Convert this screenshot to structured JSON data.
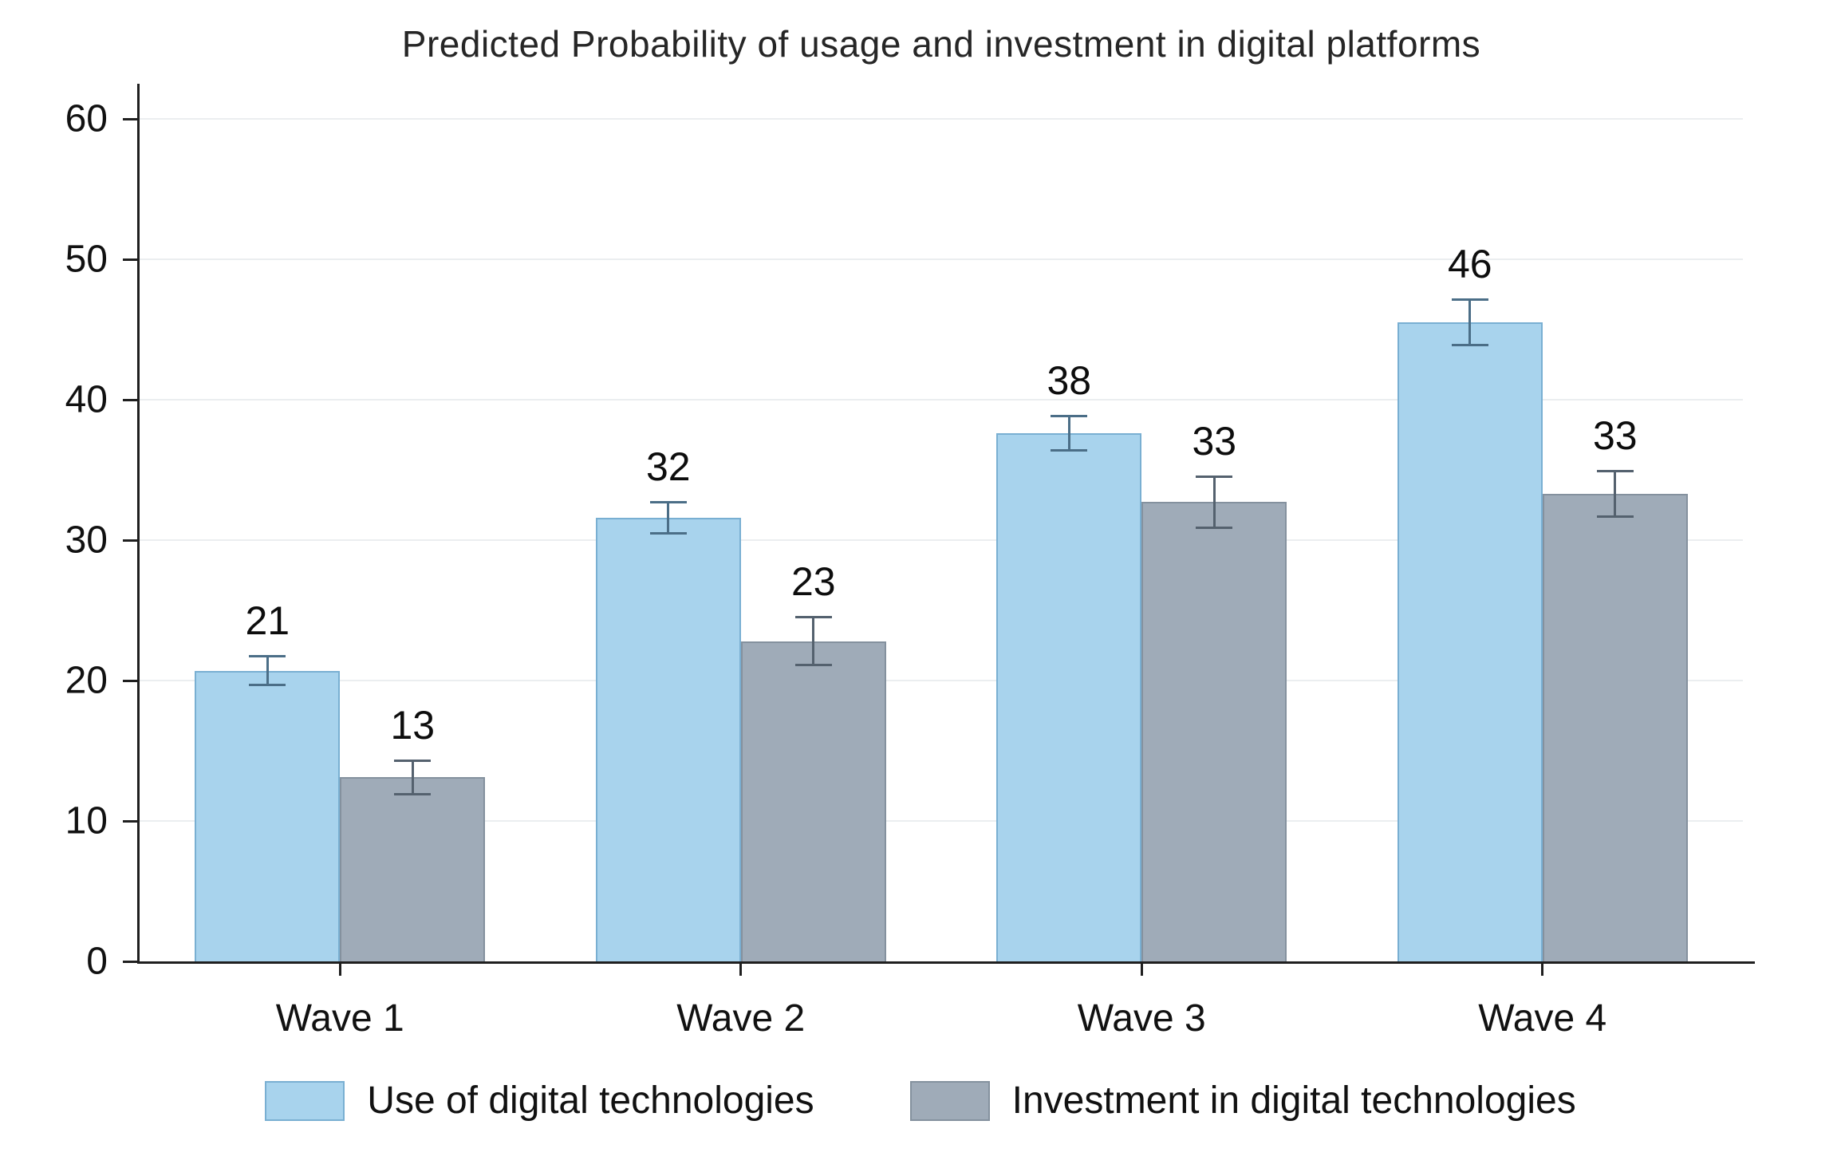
{
  "chart_data": {
    "type": "bar",
    "title": "Predicted Probability of usage and investment in digital platforms",
    "categories": [
      "Wave 1",
      "Wave 2",
      "Wave 3",
      "Wave 4"
    ],
    "series": [
      {
        "name": "Use of digital technologies",
        "color": "#a8d3ed",
        "border_color": "#79afd2",
        "error_color": "#4b6e87",
        "values": [
          20.7,
          31.6,
          37.6,
          45.5
        ],
        "data_labels": [
          "21",
          "32",
          "38",
          "46"
        ],
        "error_halfwidths": [
          1.1,
          1.2,
          1.3,
          1.7
        ]
      },
      {
        "name": "Investment in digital technologies",
        "color": "#9fabb8",
        "border_color": "#84919e",
        "error_color": "#54616e",
        "values": [
          13.1,
          22.8,
          32.7,
          33.3
        ],
        "data_labels": [
          "13",
          "23",
          "33",
          "33"
        ],
        "error_halfwidths": [
          1.3,
          1.8,
          1.9,
          1.7
        ]
      }
    ],
    "ylim": [
      0,
      60
    ],
    "yticks": [
      0,
      10,
      20,
      30,
      40,
      50,
      60
    ],
    "xlabel": "",
    "ylabel": "",
    "grid": true,
    "grid_color": "#ebeef0",
    "axis_color": "#1f1f1f",
    "background_color": "#ffffff",
    "legend_position": "bottom",
    "legend": [
      "Use of digital technologies",
      "Investment in digital technologies"
    ]
  }
}
